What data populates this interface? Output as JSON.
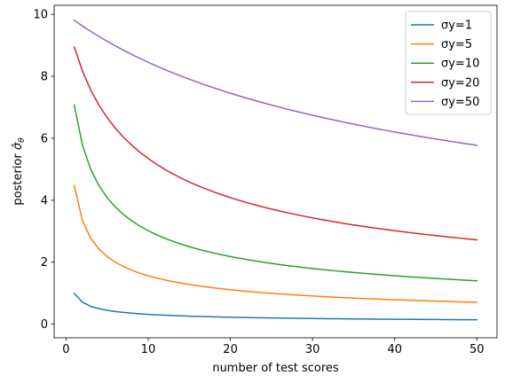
{
  "chart_data": {
    "type": "line",
    "title": "",
    "xlabel": "number of test scores",
    "ylabel": "posterior σ̂θ",
    "ylabel_parts": {
      "main": "posterior ",
      "symbol": "σ̂",
      "subscript": "θ"
    },
    "xlim": [
      -1.45,
      52.45
    ],
    "ylim": [
      -0.44,
      10.29
    ],
    "xticks": [
      0,
      10,
      20,
      30,
      40,
      50
    ],
    "yticks": [
      0,
      2,
      4,
      6,
      8,
      10
    ],
    "grid": false,
    "legend_position": "top-right",
    "x": [
      1,
      2,
      3,
      4,
      5,
      6,
      7,
      8,
      9,
      10,
      11,
      12,
      13,
      14,
      15,
      16,
      17,
      18,
      19,
      20,
      21,
      22,
      23,
      24,
      25,
      26,
      27,
      28,
      29,
      30,
      31,
      32,
      33,
      34,
      35,
      36,
      37,
      38,
      39,
      40,
      41,
      42,
      43,
      44,
      45,
      46,
      47,
      48,
      49,
      50
    ],
    "series": [
      {
        "name": "σy=1",
        "sigma_y": 1,
        "color": "#1f77b4"
      },
      {
        "name": "σy=5",
        "sigma_y": 5,
        "color": "#ff7f0e"
      },
      {
        "name": "σy=10",
        "sigma_y": 10,
        "color": "#2ca02c"
      },
      {
        "name": "σy=20",
        "sigma_y": 20,
        "color": "#d62728"
      },
      {
        "name": "σy=50",
        "sigma_y": 50,
        "color": "#9467bd"
      }
    ]
  }
}
